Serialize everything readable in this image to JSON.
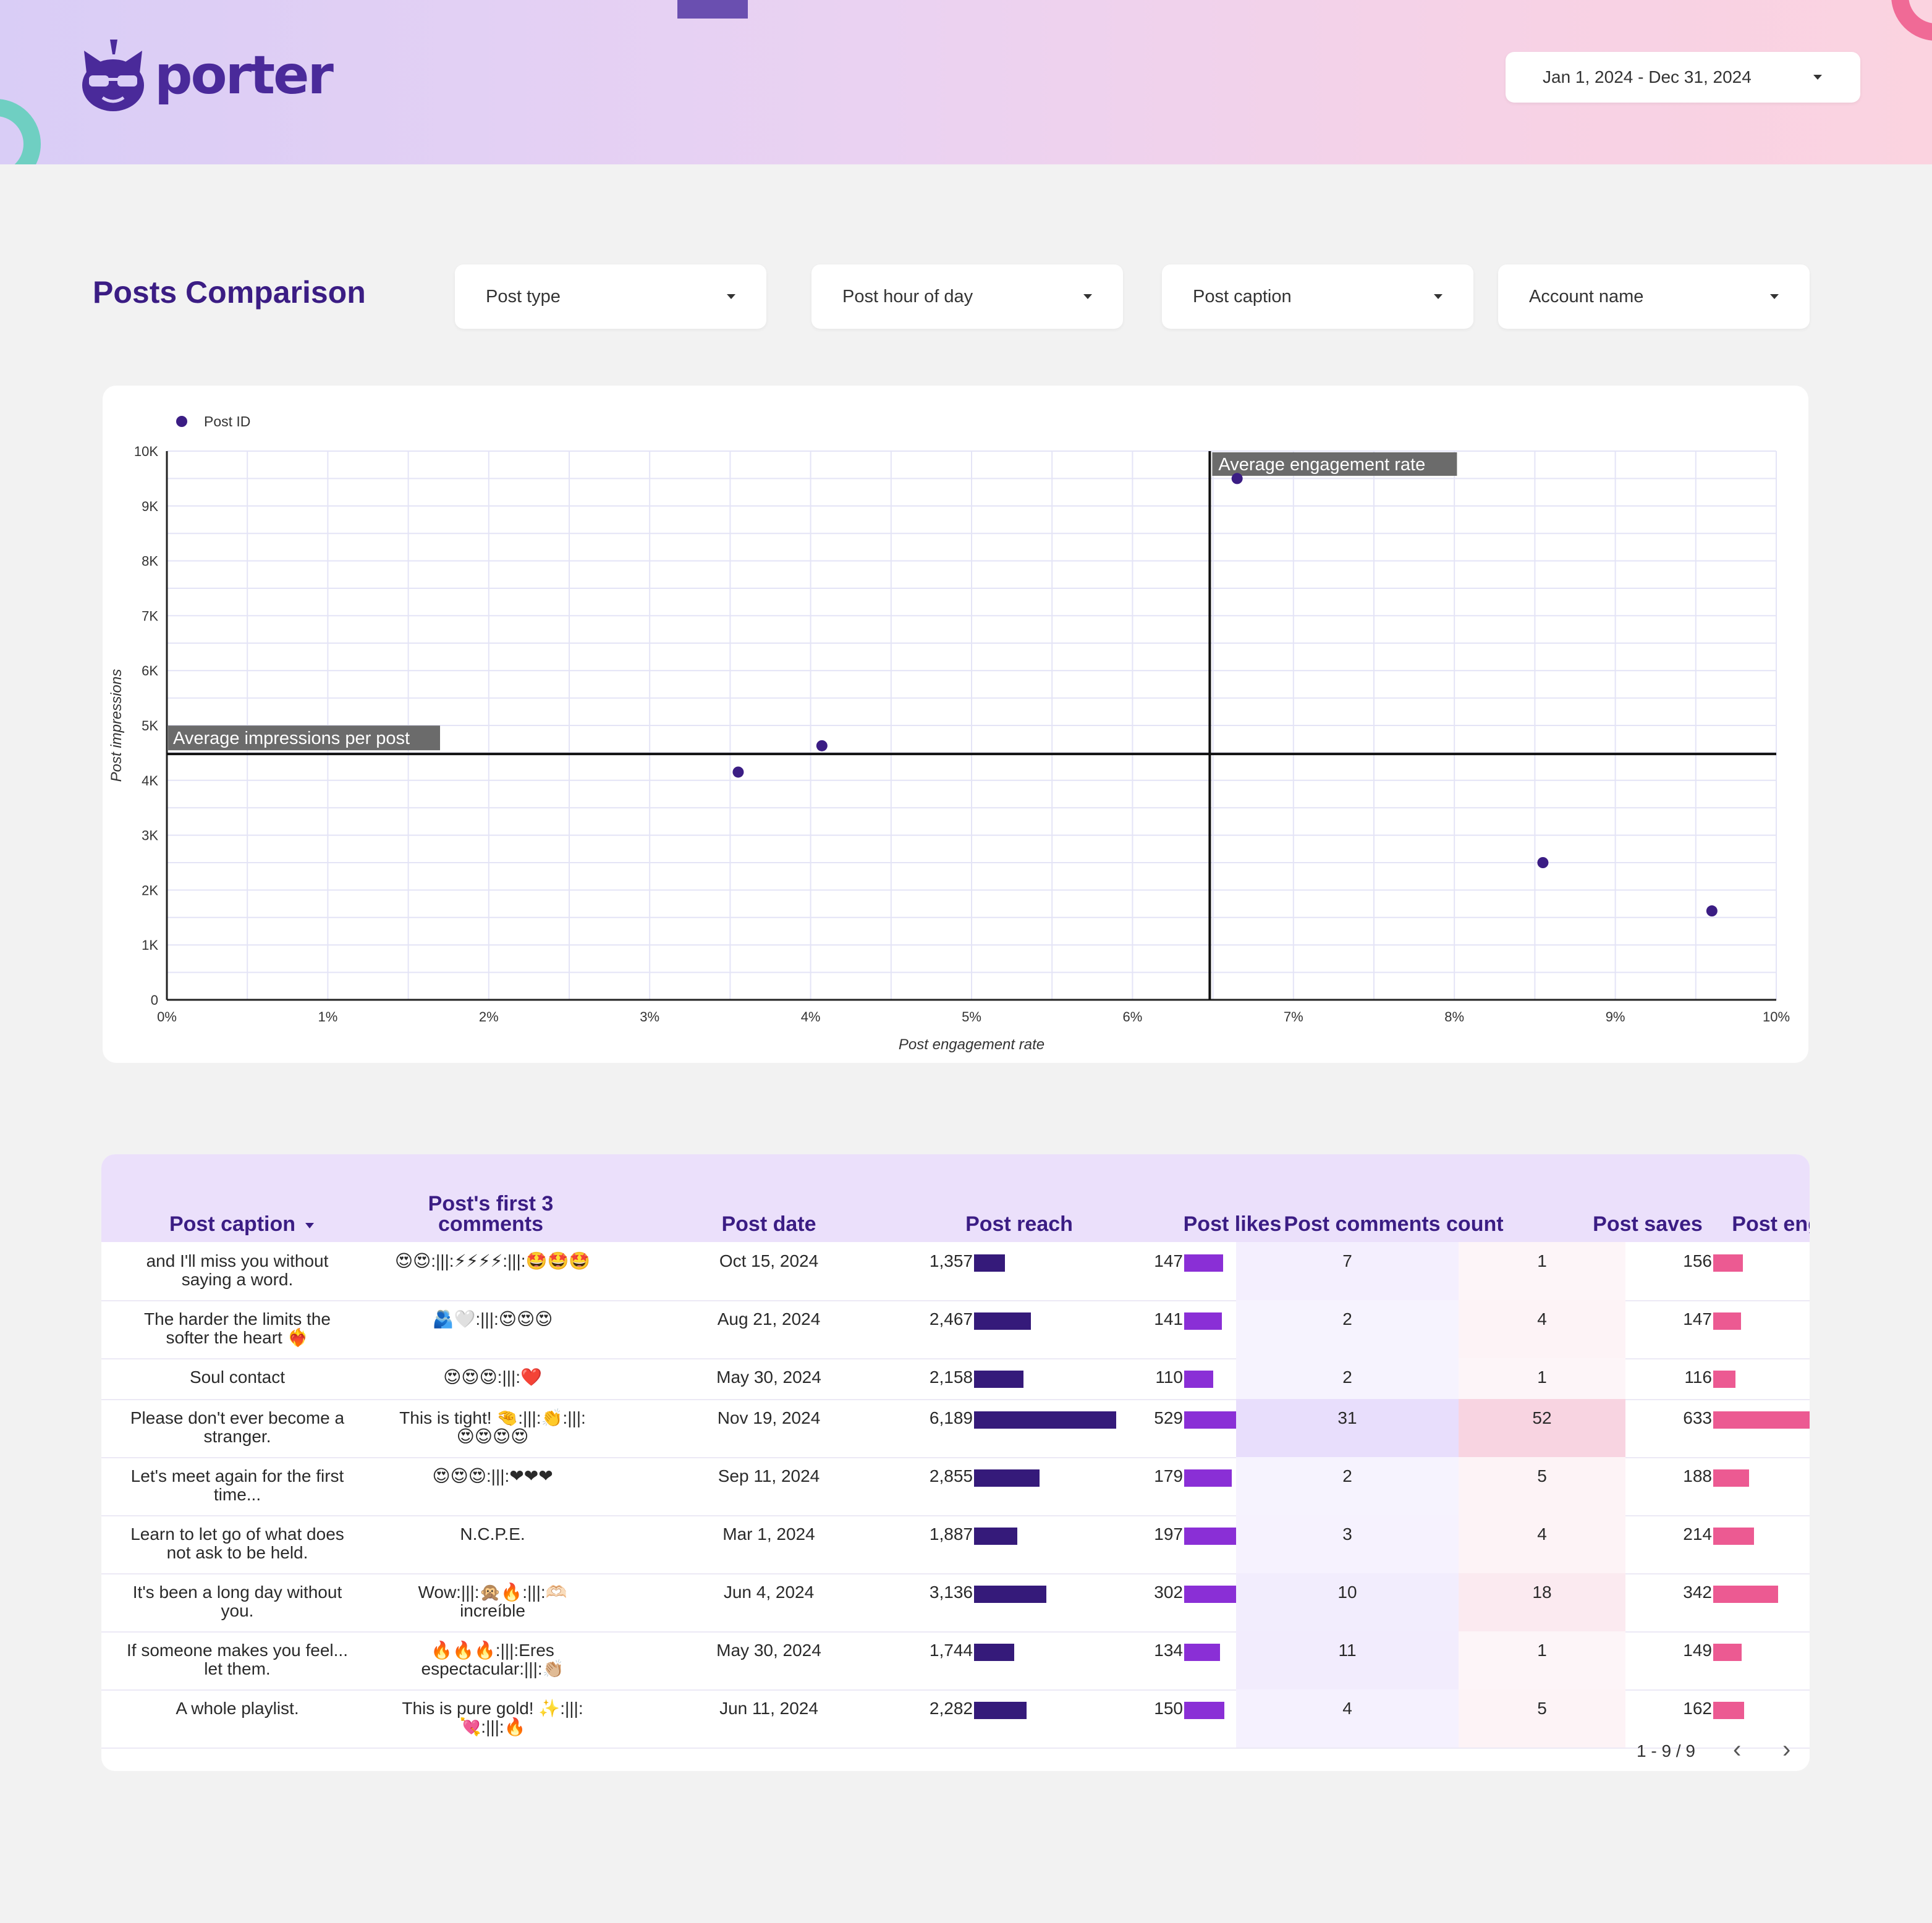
{
  "header": {
    "logo_text": "porter",
    "date_range": "Jan 1, 2024 - Dec 31, 2024"
  },
  "page": {
    "title": "Posts Comparison"
  },
  "filters": [
    {
      "label": "Post type"
    },
    {
      "label": "Post hour of day"
    },
    {
      "label": "Post caption"
    },
    {
      "label": "Account name"
    }
  ],
  "colors": {
    "brand": "#3b1d84",
    "point": "#3b1d84",
    "reach_bar": "#351a7a",
    "likes_bar": "#8a2fd6",
    "engagement_bar": "#ec5a92",
    "comments_highlight": "#e8defc",
    "saves_highlight": "#f8d4e1"
  },
  "chart_data": {
    "type": "scatter",
    "legend": "Post ID",
    "legend_position": "top-left",
    "xlabel": "Post engagement rate",
    "ylabel": "Post impressions",
    "xlim": [
      0,
      10
    ],
    "ylim": [
      0,
      10000
    ],
    "x_ticks": [
      "0%",
      "1%",
      "2%",
      "3%",
      "4%",
      "5%",
      "6%",
      "7%",
      "8%",
      "9%",
      "10%"
    ],
    "y_ticks": [
      "0",
      "1K",
      "2K",
      "3K",
      "4K",
      "5K",
      "6K",
      "7K",
      "8K",
      "9K",
      "10K"
    ],
    "grid": true,
    "points": [
      {
        "x": 3.55,
        "y": 4150
      },
      {
        "x": 4.07,
        "y": 4630
      },
      {
        "x": 6.65,
        "y": 9500
      },
      {
        "x": 8.55,
        "y": 2500
      },
      {
        "x": 9.6,
        "y": 1620
      }
    ],
    "reference_lines": {
      "vertical": {
        "label": "Average engagement rate",
        "x": 6.48
      },
      "horizontal": {
        "label": "Average impressions per post",
        "y": 4480
      }
    }
  },
  "table": {
    "columns": [
      "Post caption",
      "Post's first 3 comments",
      "Post date",
      "Post reach",
      "Post likes",
      "Post comments count",
      "Post saves",
      "Post engagement"
    ],
    "rows": [
      {
        "caption": "and I'll miss you without saying a word.",
        "comments": "😍😍:|||:⚡⚡⚡⚡:|||:🤩🤩🤩",
        "date": "Oct 15, 2024",
        "reach": "1,357",
        "reach_v": 1357,
        "likes": "147",
        "likes_v": 147,
        "comments_count": "7",
        "comments_v": 7,
        "saves": "1",
        "saves_v": 1,
        "engagement": "156",
        "engagement_v": 156
      },
      {
        "caption": "The harder the limits the softer the heart ❤️‍🔥",
        "comments": "🫂🤍:|||:😍😍😍",
        "date": "Aug 21, 2024",
        "reach": "2,467",
        "reach_v": 2467,
        "likes": "141",
        "likes_v": 141,
        "comments_count": "2",
        "comments_v": 2,
        "saves": "4",
        "saves_v": 4,
        "engagement": "147",
        "engagement_v": 147
      },
      {
        "caption": "Soul contact",
        "comments": "😍😍😍:|||:❤️",
        "date": "May 30, 2024",
        "reach": "2,158",
        "reach_v": 2158,
        "likes": "110",
        "likes_v": 110,
        "comments_count": "2",
        "comments_v": 2,
        "saves": "1",
        "saves_v": 1,
        "engagement": "116",
        "engagement_v": 116
      },
      {
        "caption": "Please don't ever become a stranger.",
        "comments": "This is tight! 🤏:|||:👏:|||:😍😍😍😍",
        "date": "Nov 19, 2024",
        "reach": "6,189",
        "reach_v": 6189,
        "likes": "529",
        "likes_v": 529,
        "comments_count": "31",
        "comments_v": 31,
        "saves": "52",
        "saves_v": 52,
        "engagement": "633",
        "engagement_v": 633
      },
      {
        "caption": "Let's meet again for the first time...",
        "comments": "😍😍😍:|||:❤❤❤",
        "date": "Sep 11, 2024",
        "reach": "2,855",
        "reach_v": 2855,
        "likes": "179",
        "likes_v": 179,
        "comments_count": "2",
        "comments_v": 2,
        "saves": "5",
        "saves_v": 5,
        "engagement": "188",
        "engagement_v": 188
      },
      {
        "caption": "Learn to let go of what does not ask to be held.",
        "comments": "N.C.P.E.",
        "date": "Mar 1, 2024",
        "reach": "1,887",
        "reach_v": 1887,
        "likes": "197",
        "likes_v": 197,
        "comments_count": "3",
        "comments_v": 3,
        "saves": "4",
        "saves_v": 4,
        "engagement": "214",
        "engagement_v": 214
      },
      {
        "caption": "It's been a long day without you.",
        "comments": "Wow:|||:🙊🔥:|||:🫶🏻increíble",
        "date": "Jun 4, 2024",
        "reach": "3,136",
        "reach_v": 3136,
        "likes": "302",
        "likes_v": 302,
        "comments_count": "10",
        "comments_v": 10,
        "saves": "18",
        "saves_v": 18,
        "engagement": "342",
        "engagement_v": 342
      },
      {
        "caption": "If someone makes you feel... let them.",
        "comments": "🔥🔥🔥:|||:Eres espectacular:|||:👏🏼",
        "date": "May 30, 2024",
        "reach": "1,744",
        "reach_v": 1744,
        "likes": "134",
        "likes_v": 134,
        "comments_count": "11",
        "comments_v": 11,
        "saves": "1",
        "saves_v": 1,
        "engagement": "149",
        "engagement_v": 149
      },
      {
        "caption": "A whole playlist.",
        "comments": "This is pure gold! ✨:|||:💘:|||:🔥",
        "date": "Jun 11, 2024",
        "reach": "2,282",
        "reach_v": 2282,
        "likes": "150",
        "likes_v": 150,
        "comments_count": "4",
        "comments_v": 4,
        "saves": "5",
        "saves_v": 5,
        "engagement": "162",
        "engagement_v": 162
      }
    ],
    "pagination": "1 - 9 / 9"
  }
}
